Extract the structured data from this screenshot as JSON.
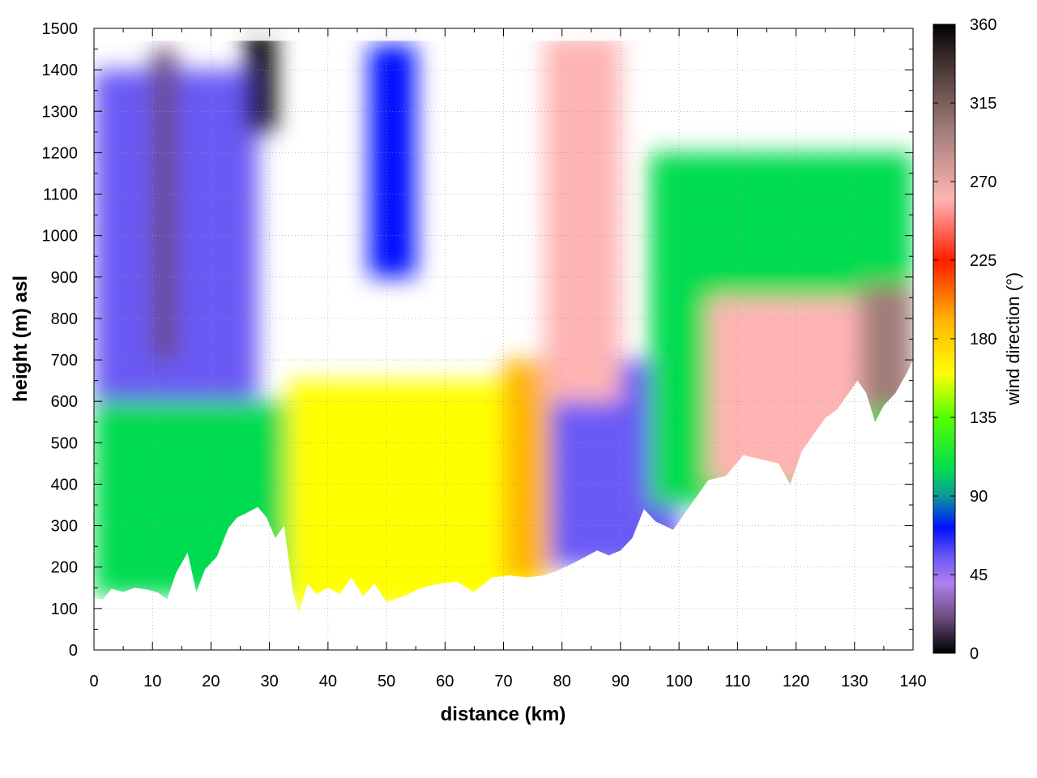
{
  "chart_data": {
    "type": "heatmap",
    "title": "",
    "xlabel": "distance (km)",
    "ylabel": "height (m) asl",
    "colorbar_label": "wind direction (°)",
    "xlim": [
      0,
      140
    ],
    "ylim": [
      0,
      1500
    ],
    "clim": [
      0,
      360
    ],
    "x_ticks": [
      0,
      10,
      20,
      30,
      40,
      50,
      60,
      70,
      80,
      90,
      100,
      110,
      120,
      130,
      140
    ],
    "y_ticks": [
      0,
      100,
      200,
      300,
      400,
      500,
      600,
      700,
      800,
      900,
      1000,
      1100,
      1200,
      1300,
      1400,
      1500
    ],
    "colorbar_ticks": [
      0,
      45,
      90,
      135,
      180,
      225,
      270,
      315,
      360
    ],
    "grid": true,
    "colormap": [
      {
        "v": 0,
        "color": "#000000"
      },
      {
        "v": 20,
        "color": "#6a4a7a"
      },
      {
        "v": 40,
        "color": "#b080f0"
      },
      {
        "v": 55,
        "color": "#6a5af5"
      },
      {
        "v": 72,
        "color": "#0010ff"
      },
      {
        "v": 90,
        "color": "#0a9a9a"
      },
      {
        "v": 105,
        "color": "#00dc50"
      },
      {
        "v": 135,
        "color": "#55ff00"
      },
      {
        "v": 160,
        "color": "#ffff00"
      },
      {
        "v": 190,
        "color": "#ffb400"
      },
      {
        "v": 225,
        "color": "#ff1e00"
      },
      {
        "v": 260,
        "color": "#ffb4b4"
      },
      {
        "v": 300,
        "color": "#a07c78"
      },
      {
        "v": 340,
        "color": "#3c2d2d"
      },
      {
        "v": 360,
        "color": "#000000"
      }
    ],
    "terrain": {
      "distance_km": [
        0,
        1.5,
        3,
        5,
        7,
        9,
        11,
        12.5,
        14,
        16,
        17.5,
        19,
        21,
        23,
        24.5,
        26,
        28,
        29.5,
        31,
        32.5,
        34,
        35,
        36.5,
        38,
        40,
        42,
        44,
        46,
        48,
        50,
        53,
        56,
        59,
        62,
        65,
        68,
        71,
        74,
        77,
        79,
        82,
        84,
        86,
        88,
        90,
        92,
        94,
        96,
        99,
        102,
        105,
        108,
        111,
        114,
        117,
        119,
        121,
        123,
        125,
        127,
        129,
        130.5,
        132,
        133.5,
        135,
        137,
        139,
        140
      ],
      "height_m": [
        125,
        122,
        148,
        140,
        150,
        146,
        138,
        122,
        185,
        235,
        140,
        195,
        225,
        295,
        320,
        330,
        345,
        320,
        270,
        300,
        140,
        85,
        160,
        135,
        150,
        135,
        175,
        130,
        160,
        115,
        130,
        150,
        160,
        165,
        140,
        175,
        180,
        175,
        180,
        190,
        210,
        225,
        240,
        228,
        240,
        270,
        340,
        310,
        290,
        350,
        410,
        420,
        470,
        460,
        450,
        400,
        480,
        520,
        560,
        580,
        620,
        650,
        620,
        550,
        590,
        620,
        670,
        700
      ]
    },
    "fields": [
      {
        "name": "lower-green-layer",
        "distance_range_km": [
          0,
          33
        ],
        "height_range_m": [
          130,
          600
        ],
        "direction_deg": 130
      },
      {
        "name": "left-blue-upper",
        "distance_range_km": [
          0,
          28
        ],
        "height_range_m": [
          600,
          1400
        ],
        "direction_deg": 70
      },
      {
        "name": "purple-plume-12km",
        "distance_range_km": [
          10,
          14
        ],
        "height_range_m": [
          700,
          1450
        ],
        "direction_deg": 40
      },
      {
        "name": "dark-purple-core-28km",
        "distance_range_km": [
          26,
          31
        ],
        "height_range_m": [
          1250,
          1500
        ],
        "direction_deg": 15
      },
      {
        "name": "yellow-orange-layer",
        "distance_range_km": [
          33,
          76
        ],
        "height_range_m": [
          100,
          650
        ],
        "direction_deg": 170
      },
      {
        "name": "orange-red-edge",
        "distance_range_km": [
          70,
          78
        ],
        "height_range_m": [
          170,
          700
        ],
        "direction_deg": 215
      },
      {
        "name": "blue-column-50km",
        "distance_range_km": [
          47,
          55
        ],
        "height_range_m": [
          900,
          1460
        ],
        "direction_deg": 85
      },
      {
        "name": "blue-trough-80-95km",
        "distance_range_km": [
          78,
          100
        ],
        "height_range_m": [
          200,
          700
        ],
        "direction_deg": 72
      },
      {
        "name": "red-pink-column-83km",
        "distance_range_km": [
          77,
          90
        ],
        "height_range_m": [
          600,
          1480
        ],
        "direction_deg": 270
      },
      {
        "name": "green-mid-100km",
        "distance_range_km": [
          95,
          140
        ],
        "height_range_m": [
          350,
          1200
        ],
        "direction_deg": 120
      },
      {
        "name": "pink-red-lobe-120km",
        "distance_range_km": [
          105,
          131
        ],
        "height_range_m": [
          400,
          850
        ],
        "direction_deg": 265
      },
      {
        "name": "dark-brown-corner-138km",
        "distance_range_km": [
          131,
          140
        ],
        "height_range_m": [
          580,
          880
        ],
        "direction_deg": 320
      }
    ]
  }
}
